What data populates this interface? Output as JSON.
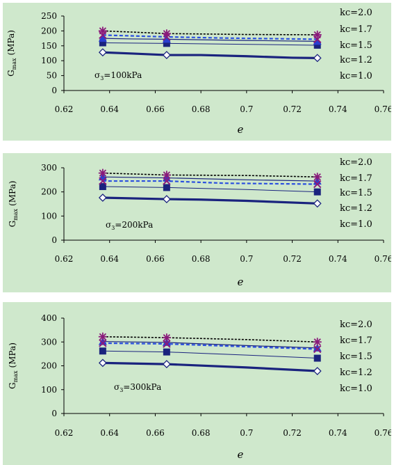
{
  "chart_data": [
    {
      "type": "line",
      "xlabel": "e",
      "ylabel": "G",
      "ylabel_sub": "max",
      "ylabel_unit": "(MPa)",
      "xlim": [
        0.62,
        0.76
      ],
      "ylim": [
        0,
        250
      ],
      "xticks": [
        "0.62",
        "0.64",
        "0.66",
        "0.68",
        "0.7",
        "0.72",
        "0.74",
        "0.76"
      ],
      "yticks": [
        "0",
        "50",
        "100",
        "150",
        "200",
        "250"
      ],
      "annotation": "σ₃=100kPa",
      "annotation_symbol": "σ",
      "annotation_sub": "3",
      "annotation_rest": "=100kPa",
      "legend": [
        "kc=2.0",
        "kc=1.7",
        "kc=1.5",
        "kc=1.2",
        "kc=1.0"
      ],
      "series": [
        {
          "name": "kc=2.0",
          "color": "#000000",
          "dash": "3,2",
          "width": 1.6,
          "marker": "asterisk",
          "line": [
            [
              0.637,
              200
            ],
            [
              0.65,
              196
            ],
            [
              0.665,
              191
            ],
            [
              0.7,
              188
            ],
            [
              0.731,
              187
            ]
          ],
          "points": [
            [
              0.637,
              200
            ],
            [
              0.665,
              191
            ],
            [
              0.731,
              187
            ]
          ]
        },
        {
          "name": "kc=1.7",
          "color": "#2a4fe0",
          "dash": "5,3",
          "width": 2.2,
          "marker": "x-purple",
          "line": [
            [
              0.637,
              186
            ],
            [
              0.665,
              180
            ],
            [
              0.69,
              176
            ],
            [
              0.731,
              172
            ]
          ],
          "points": [
            [
              0.637,
              186
            ],
            [
              0.665,
              180
            ],
            [
              0.731,
              172
            ]
          ]
        },
        {
          "name": "kc=1.5",
          "color": "#1a237e",
          "dash": "",
          "width": 1.2,
          "marker": "triangle",
          "line": [
            [
              0.637,
              175
            ],
            [
              0.65,
              173
            ],
            [
              0.665,
              172
            ],
            [
              0.7,
              168
            ],
            [
              0.731,
              165
            ]
          ],
          "points": [
            [
              0.637,
              175
            ],
            [
              0.665,
              172
            ],
            [
              0.731,
              165
            ]
          ]
        },
        {
          "name": "kc=1.2",
          "color": "#1a237e",
          "dash": "",
          "width": 1.0,
          "marker": "square",
          "line": [
            [
              0.637,
              160
            ],
            [
              0.665,
              158
            ],
            [
              0.731,
              152
            ]
          ],
          "points": [
            [
              0.637,
              160
            ],
            [
              0.665,
              158
            ],
            [
              0.731,
              152
            ]
          ]
        },
        {
          "name": "kc=1.0",
          "color": "#1a237e",
          "dash": "",
          "width": 3.2,
          "marker": "diamond",
          "line": [
            [
              0.637,
              128
            ],
            [
              0.65,
              124
            ],
            [
              0.665,
              119
            ],
            [
              0.68,
              119
            ],
            [
              0.7,
              115
            ],
            [
              0.72,
              110
            ],
            [
              0.731,
              109
            ]
          ],
          "points": [
            [
              0.637,
              128
            ],
            [
              0.665,
              119
            ],
            [
              0.731,
              109
            ]
          ]
        }
      ]
    },
    {
      "type": "line",
      "xlabel": "e",
      "ylabel": "G",
      "ylabel_sub": "max",
      "ylabel_unit": "(MPa)",
      "xlim": [
        0.62,
        0.76
      ],
      "ylim": [
        0,
        300
      ],
      "xticks": [
        "0.62",
        "0.64",
        "0.66",
        "0.68",
        "0.7",
        "0.72",
        "0.74",
        "0.76"
      ],
      "yticks": [
        "0",
        "100",
        "200",
        "300"
      ],
      "annotation_symbol": "σ",
      "annotation_sub": "3",
      "annotation_rest": "=200kPa",
      "legend": [
        "kc=2.0",
        "kc=1.7",
        "kc=1.5",
        "kc=1.2",
        "kc=1.0"
      ],
      "series": [
        {
          "name": "kc=2.0",
          "color": "#000000",
          "dash": "3,2",
          "width": 1.6,
          "marker": "asterisk",
          "line": [
            [
              0.637,
              278
            ],
            [
              0.665,
              270
            ],
            [
              0.7,
              268
            ],
            [
              0.731,
              262
            ]
          ],
          "points": [
            [
              0.637,
              278
            ],
            [
              0.665,
              270
            ],
            [
              0.731,
              262
            ]
          ]
        },
        {
          "name": "kc=1.7",
          "color": "#2a4fe0",
          "dash": "5,3",
          "width": 2.2,
          "marker": "x-purple",
          "line": [
            [
              0.637,
              245
            ],
            [
              0.665,
              245
            ],
            [
              0.69,
              236
            ],
            [
              0.731,
              232
            ]
          ],
          "points": [
            [
              0.637,
              245
            ],
            [
              0.665,
              245
            ],
            [
              0.731,
              232
            ]
          ]
        },
        {
          "name": "kc=1.5",
          "color": "#1a237e",
          "dash": "",
          "width": 1.2,
          "marker": "triangle",
          "line": [
            [
              0.637,
              262
            ],
            [
              0.665,
              258
            ],
            [
              0.7,
              250
            ],
            [
              0.731,
              245
            ]
          ],
          "points": [
            [
              0.637,
              262
            ],
            [
              0.665,
              258
            ],
            [
              0.731,
              245
            ]
          ]
        },
        {
          "name": "kc=1.2",
          "color": "#1a237e",
          "dash": "",
          "width": 1.0,
          "marker": "square",
          "line": [
            [
              0.637,
              222
            ],
            [
              0.665,
              218
            ],
            [
              0.7,
              210
            ],
            [
              0.731,
              200
            ]
          ],
          "points": [
            [
              0.637,
              222
            ],
            [
              0.665,
              218
            ],
            [
              0.731,
              200
            ]
          ]
        },
        {
          "name": "kc=1.0",
          "color": "#1a237e",
          "dash": "",
          "width": 3.2,
          "marker": "diamond",
          "line": [
            [
              0.637,
              176
            ],
            [
              0.665,
              170
            ],
            [
              0.68,
              168
            ],
            [
              0.7,
              163
            ],
            [
              0.731,
              152
            ]
          ],
          "points": [
            [
              0.637,
              176
            ],
            [
              0.665,
              170
            ],
            [
              0.731,
              152
            ]
          ]
        }
      ]
    },
    {
      "type": "line",
      "xlabel": "e",
      "ylabel": "G",
      "ylabel_sub": "max",
      "ylabel_unit": "(MPa)",
      "xlim": [
        0.62,
        0.76
      ],
      "ylim": [
        0,
        400
      ],
      "xticks": [
        "0.62",
        "0.64",
        "0.66",
        "0.68",
        "0.7",
        "0.72",
        "0.74",
        "0.76"
      ],
      "yticks": [
        "0",
        "100",
        "200",
        "300",
        "400"
      ],
      "annotation_symbol": "σ",
      "annotation_sub": "3",
      "annotation_rest": "=300kPa",
      "legend": [
        "kc=2.0",
        "kc=1.7",
        "kc=1.5",
        "kc=1.2",
        "kc=1.0"
      ],
      "series": [
        {
          "name": "kc=2.0",
          "color": "#000000",
          "dash": "3,2",
          "width": 1.6,
          "marker": "asterisk",
          "line": [
            [
              0.637,
              322
            ],
            [
              0.665,
              318
            ],
            [
              0.7,
              310
            ],
            [
              0.731,
              300
            ]
          ],
          "points": [
            [
              0.637,
              322
            ],
            [
              0.665,
              318
            ],
            [
              0.731,
              300
            ]
          ]
        },
        {
          "name": "kc=1.7",
          "color": "#2a4fe0",
          "dash": "5,3",
          "width": 2.2,
          "marker": "x-purple",
          "line": [
            [
              0.637,
              295
            ],
            [
              0.665,
              292
            ],
            [
              0.7,
              280
            ],
            [
              0.731,
              270
            ]
          ],
          "points": [
            [
              0.637,
              295
            ],
            [
              0.665,
              292
            ],
            [
              0.731,
              270
            ]
          ]
        },
        {
          "name": "kc=1.5",
          "color": "#1a237e",
          "dash": "",
          "width": 1.2,
          "marker": "triangle",
          "line": [
            [
              0.637,
              302
            ],
            [
              0.665,
              298
            ],
            [
              0.7,
              285
            ],
            [
              0.731,
              275
            ]
          ],
          "points": [
            [
              0.637,
              302
            ],
            [
              0.665,
              298
            ],
            [
              0.731,
              275
            ]
          ]
        },
        {
          "name": "kc=1.2",
          "color": "#1a237e",
          "dash": "",
          "width": 1.0,
          "marker": "square",
          "line": [
            [
              0.637,
              262
            ],
            [
              0.665,
              258
            ],
            [
              0.7,
              245
            ],
            [
              0.731,
              232
            ]
          ],
          "points": [
            [
              0.637,
              262
            ],
            [
              0.665,
              258
            ],
            [
              0.731,
              232
            ]
          ]
        },
        {
          "name": "kc=1.0",
          "color": "#1a237e",
          "dash": "",
          "width": 3.2,
          "marker": "diamond",
          "line": [
            [
              0.637,
              212
            ],
            [
              0.665,
              207
            ],
            [
              0.7,
              193
            ],
            [
              0.731,
              178
            ]
          ],
          "points": [
            [
              0.637,
              212
            ],
            [
              0.665,
              207
            ],
            [
              0.731,
              178
            ]
          ]
        }
      ]
    }
  ]
}
